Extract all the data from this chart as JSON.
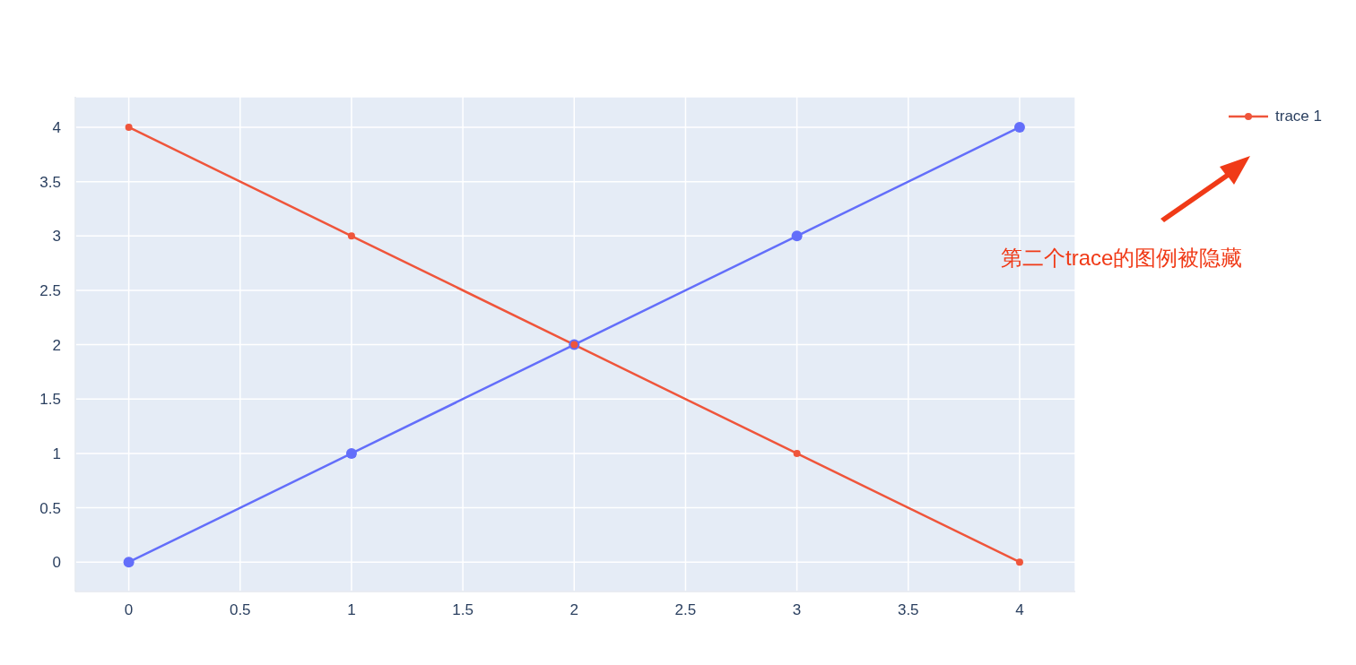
{
  "chart_data": {
    "type": "line",
    "x": [
      0,
      1,
      2,
      3,
      4
    ],
    "series": [
      {
        "color": "#636efa",
        "values": [
          0,
          1,
          2,
          3,
          4
        ]
      },
      {
        "name": "trace 1",
        "color": "#ef553b",
        "values": [
          4,
          3,
          2,
          1,
          0
        ]
      }
    ],
    "xlim": [
      -0.24,
      4.25
    ],
    "xticks": [
      0,
      0.5,
      1,
      1.5,
      2,
      2.5,
      3,
      3.5,
      4
    ],
    "ylim": [
      -0.27,
      4.28
    ],
    "yticks": [
      0,
      0.5,
      1,
      1.5,
      2,
      2.5,
      3,
      3.5,
      4
    ],
    "grid": true,
    "marker": "circle",
    "line_style": "solid",
    "legend": "top right",
    "annotations": [
      "第二个trace的图例被隐藏"
    ]
  }
}
